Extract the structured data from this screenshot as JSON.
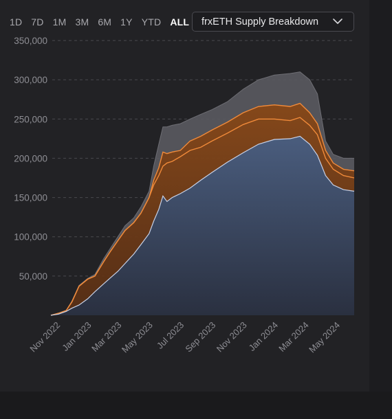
{
  "range_buttons": [
    {
      "label": "1D",
      "active": false
    },
    {
      "label": "7D",
      "active": false
    },
    {
      "label": "1M",
      "active": false
    },
    {
      "label": "3M",
      "active": false
    },
    {
      "label": "6M",
      "active": false
    },
    {
      "label": "1Y",
      "active": false
    },
    {
      "label": "YTD",
      "active": false
    },
    {
      "label": "ALL",
      "active": true
    }
  ],
  "dropdown": {
    "selected": "frxETH Supply Breakdown",
    "icon": "chevron-down-icon"
  },
  "colors": {
    "background": "#222225",
    "blue_area": "#4a5d7e",
    "blue_line": "#c8d2e8",
    "orange_area": "#8a4a1a",
    "orange_line": "#f08a3a",
    "gray_area": "#5a5a60",
    "grid": "#4a4a4e"
  },
  "chart_data": {
    "type": "area",
    "title": "",
    "xlabel": "",
    "ylabel": "",
    "ylim": [
      0,
      350000
    ],
    "y_ticks": [
      "50,000",
      "100,000",
      "150,000",
      "200,000",
      "250,000",
      "300,000",
      "350,000"
    ],
    "y_tick_values": [
      50000,
      100000,
      150000,
      200000,
      250000,
      300000,
      350000
    ],
    "x_ticks": [
      "Nov 2022",
      "Jan 2023",
      "Mar 2023",
      "May 2023",
      "Jul 2023",
      "Sep 2023",
      "Nov 2023",
      "Jan 2024",
      "Mar 2024",
      "May 2024"
    ],
    "x_tick_dates": [
      "2022-11-01",
      "2023-01-01",
      "2023-03-01",
      "2023-05-01",
      "2023-07-01",
      "2023-09-01",
      "2023-11-01",
      "2024-01-01",
      "2024-03-01",
      "2024-05-01"
    ],
    "x_range": [
      "2022-10-21",
      "2024-06-05"
    ],
    "grid": "horizontal dashed",
    "legend": "none",
    "series": [
      {
        "color": "#4a5d7e",
        "points": [
          [
            "2022-10-21",
            0
          ],
          [
            "2022-11-05",
            1500
          ],
          [
            "2022-11-20",
            5000
          ],
          [
            "2022-12-01",
            9000
          ],
          [
            "2022-12-15",
            13000
          ],
          [
            "2023-01-01",
            21000
          ],
          [
            "2023-01-15",
            30000
          ],
          [
            "2023-02-01",
            40000
          ],
          [
            "2023-02-15",
            48000
          ],
          [
            "2023-03-01",
            56000
          ],
          [
            "2023-03-15",
            66000
          ],
          [
            "2023-04-01",
            78000
          ],
          [
            "2023-04-15",
            90000
          ],
          [
            "2023-05-01",
            104000
          ],
          [
            "2023-05-10",
            120000
          ],
          [
            "2023-05-20",
            135000
          ],
          [
            "2023-05-28",
            152000
          ],
          [
            "2023-06-05",
            145000
          ],
          [
            "2023-06-15",
            150000
          ],
          [
            "2023-07-01",
            155000
          ],
          [
            "2023-07-20",
            162000
          ],
          [
            "2023-08-10",
            172000
          ],
          [
            "2023-09-01",
            182000
          ],
          [
            "2023-10-01",
            195000
          ],
          [
            "2023-11-01",
            207000
          ],
          [
            "2023-12-01",
            218000
          ],
          [
            "2024-01-01",
            224000
          ],
          [
            "2024-02-01",
            225000
          ],
          [
            "2024-02-20",
            228000
          ],
          [
            "2024-03-10",
            218000
          ],
          [
            "2024-03-25",
            204000
          ],
          [
            "2024-04-10",
            178000
          ],
          [
            "2024-04-25",
            166000
          ],
          [
            "2024-05-15",
            160000
          ],
          [
            "2024-06-05",
            158000
          ]
        ]
      },
      {
        "color": "#f08a3a",
        "points": [
          [
            "2022-10-21",
            0
          ],
          [
            "2022-11-05",
            2500
          ],
          [
            "2022-11-20",
            6000
          ],
          [
            "2022-12-01",
            17000
          ],
          [
            "2022-12-15",
            37000
          ],
          [
            "2023-01-01",
            46000
          ],
          [
            "2023-01-15",
            50000
          ],
          [
            "2023-02-01",
            68000
          ],
          [
            "2023-02-15",
            82000
          ],
          [
            "2023-03-01",
            95000
          ],
          [
            "2023-03-15",
            108000
          ],
          [
            "2023-04-01",
            118000
          ],
          [
            "2023-04-15",
            130000
          ],
          [
            "2023-05-01",
            150000
          ],
          [
            "2023-05-10",
            166000
          ],
          [
            "2023-05-20",
            178000
          ],
          [
            "2023-05-28",
            190000
          ],
          [
            "2023-06-05",
            194000
          ],
          [
            "2023-06-15",
            196000
          ],
          [
            "2023-07-01",
            202000
          ],
          [
            "2023-07-20",
            210000
          ],
          [
            "2023-08-10",
            214000
          ],
          [
            "2023-09-01",
            222000
          ],
          [
            "2023-10-01",
            232000
          ],
          [
            "2023-11-01",
            243000
          ],
          [
            "2023-12-01",
            250000
          ],
          [
            "2024-01-01",
            250000
          ],
          [
            "2024-02-01",
            248000
          ],
          [
            "2024-02-20",
            252000
          ],
          [
            "2024-03-10",
            242000
          ],
          [
            "2024-03-25",
            230000
          ],
          [
            "2024-04-10",
            200000
          ],
          [
            "2024-04-25",
            186000
          ],
          [
            "2024-05-15",
            178000
          ],
          [
            "2024-06-05",
            175000
          ]
        ]
      },
      {
        "color": "#f08a3a",
        "points": [
          [
            "2022-10-21",
            0
          ],
          [
            "2022-11-05",
            2500
          ],
          [
            "2022-11-20",
            6000
          ],
          [
            "2022-12-01",
            17000
          ],
          [
            "2022-12-15",
            37000
          ],
          [
            "2023-01-01",
            46000
          ],
          [
            "2023-01-15",
            50000
          ],
          [
            "2023-02-01",
            68000
          ],
          [
            "2023-02-15",
            82000
          ],
          [
            "2023-03-01",
            95000
          ],
          [
            "2023-03-15",
            108000
          ],
          [
            "2023-04-01",
            118000
          ],
          [
            "2023-04-15",
            130000
          ],
          [
            "2023-05-01",
            150000
          ],
          [
            "2023-05-10",
            172000
          ],
          [
            "2023-05-20",
            188000
          ],
          [
            "2023-05-28",
            208000
          ],
          [
            "2023-06-05",
            206000
          ],
          [
            "2023-06-15",
            208000
          ],
          [
            "2023-07-01",
            210000
          ],
          [
            "2023-07-20",
            222000
          ],
          [
            "2023-08-10",
            228000
          ],
          [
            "2023-09-01",
            236000
          ],
          [
            "2023-10-01",
            246000
          ],
          [
            "2023-11-01",
            258000
          ],
          [
            "2023-12-01",
            266000
          ],
          [
            "2024-01-01",
            268000
          ],
          [
            "2024-02-01",
            266000
          ],
          [
            "2024-02-20",
            270000
          ],
          [
            "2024-03-10",
            258000
          ],
          [
            "2024-03-25",
            244000
          ],
          [
            "2024-04-10",
            210000
          ],
          [
            "2024-04-25",
            194000
          ],
          [
            "2024-05-15",
            186000
          ],
          [
            "2024-06-05",
            184000
          ]
        ]
      },
      {
        "color": "#5a5a60",
        "points": [
          [
            "2022-10-21",
            0
          ],
          [
            "2022-11-05",
            3000
          ],
          [
            "2022-11-20",
            6500
          ],
          [
            "2022-12-01",
            18000
          ],
          [
            "2022-12-15",
            38000
          ],
          [
            "2023-01-01",
            47000
          ],
          [
            "2023-01-15",
            52000
          ],
          [
            "2023-02-01",
            72000
          ],
          [
            "2023-02-15",
            86000
          ],
          [
            "2023-03-01",
            100000
          ],
          [
            "2023-03-15",
            114000
          ],
          [
            "2023-04-01",
            124000
          ],
          [
            "2023-04-15",
            138000
          ],
          [
            "2023-05-01",
            158000
          ],
          [
            "2023-05-10",
            190000
          ],
          [
            "2023-05-20",
            218000
          ],
          [
            "2023-05-28",
            240000
          ],
          [
            "2023-06-05",
            240000
          ],
          [
            "2023-06-15",
            242000
          ],
          [
            "2023-07-01",
            244000
          ],
          [
            "2023-07-20",
            250000
          ],
          [
            "2023-08-10",
            256000
          ],
          [
            "2023-09-01",
            262000
          ],
          [
            "2023-10-01",
            272000
          ],
          [
            "2023-11-01",
            288000
          ],
          [
            "2023-12-01",
            300000
          ],
          [
            "2024-01-01",
            306000
          ],
          [
            "2024-02-01",
            308000
          ],
          [
            "2024-02-20",
            310000
          ],
          [
            "2024-03-10",
            300000
          ],
          [
            "2024-03-25",
            282000
          ],
          [
            "2024-04-10",
            222000
          ],
          [
            "2024-04-25",
            205000
          ],
          [
            "2024-05-15",
            200000
          ],
          [
            "2024-06-05",
            200000
          ]
        ]
      }
    ]
  }
}
